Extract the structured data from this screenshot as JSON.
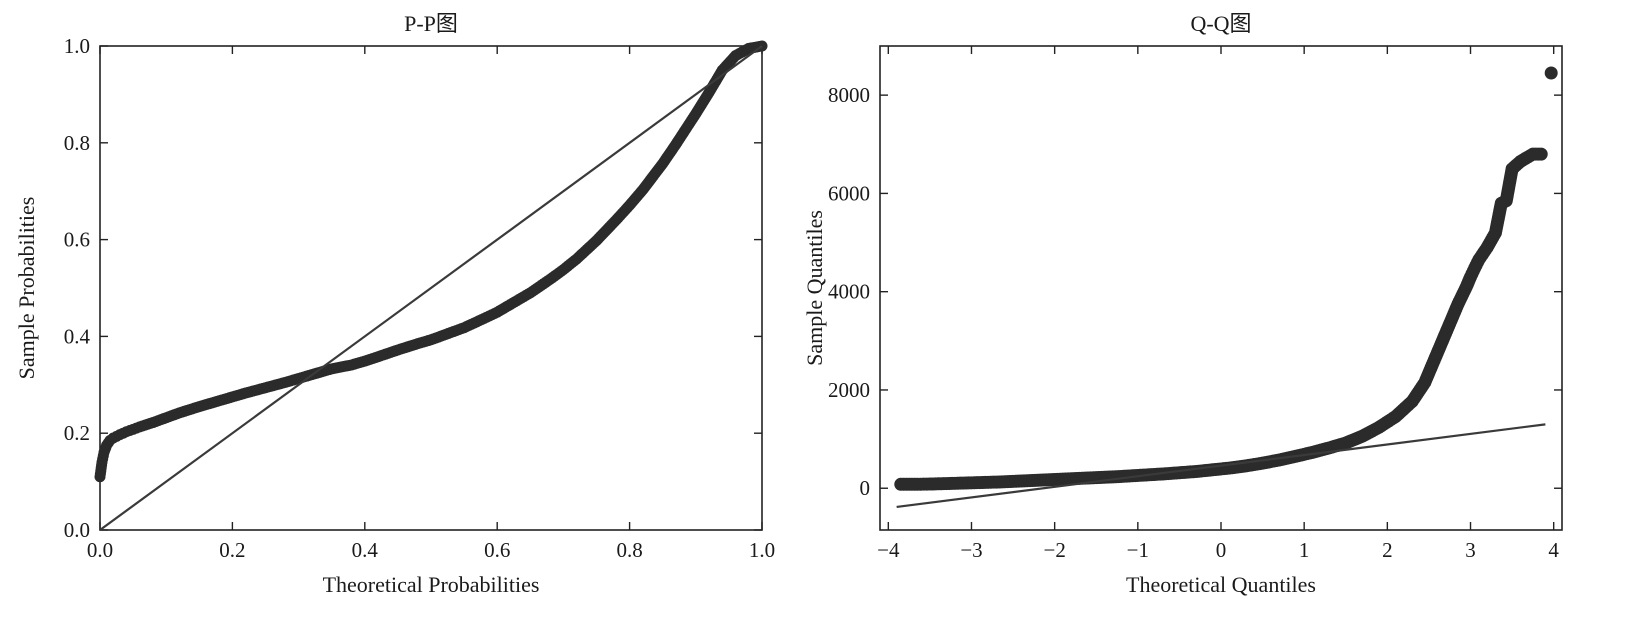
{
  "chart_data": [
    {
      "type": "scatter",
      "title": "P-P图",
      "xlabel": "Theoretical Probabilities",
      "ylabel": "Sample Probabilities",
      "xlim": [
        0.0,
        1.0
      ],
      "ylim": [
        0.0,
        1.0
      ],
      "xticks": [
        "0.0",
        "0.2",
        "0.4",
        "0.6",
        "0.8",
        "1.0"
      ],
      "yticks": [
        "0.0",
        "0.2",
        "0.4",
        "0.6",
        "0.8",
        "1.0"
      ],
      "grid": false,
      "reference_line": [
        [
          0.0,
          0.0
        ],
        [
          1.0,
          1.0
        ]
      ],
      "series": [
        {
          "marker_color": "#2b2b2b",
          "points": [
            [
              0.0,
              0.11
            ],
            [
              0.003,
              0.14
            ],
            [
              0.006,
              0.16
            ],
            [
              0.01,
              0.175
            ],
            [
              0.015,
              0.185
            ],
            [
              0.02,
              0.19
            ],
            [
              0.03,
              0.197
            ],
            [
              0.04,
              0.203
            ],
            [
              0.05,
              0.208
            ],
            [
              0.06,
              0.213
            ],
            [
              0.08,
              0.222
            ],
            [
              0.1,
              0.232
            ],
            [
              0.12,
              0.242
            ],
            [
              0.15,
              0.255
            ],
            [
              0.18,
              0.267
            ],
            [
              0.2,
              0.275
            ],
            [
              0.22,
              0.283
            ],
            [
              0.25,
              0.294
            ],
            [
              0.28,
              0.305
            ],
            [
              0.3,
              0.313
            ],
            [
              0.32,
              0.321
            ],
            [
              0.35,
              0.333
            ],
            [
              0.38,
              0.341
            ],
            [
              0.4,
              0.349
            ],
            [
              0.42,
              0.358
            ],
            [
              0.45,
              0.372
            ],
            [
              0.48,
              0.385
            ],
            [
              0.5,
              0.393
            ],
            [
              0.53,
              0.408
            ],
            [
              0.55,
              0.418
            ],
            [
              0.58,
              0.437
            ],
            [
              0.6,
              0.45
            ],
            [
              0.63,
              0.474
            ],
            [
              0.65,
              0.49
            ],
            [
              0.68,
              0.518
            ],
            [
              0.7,
              0.538
            ],
            [
              0.72,
              0.56
            ],
            [
              0.75,
              0.598
            ],
            [
              0.78,
              0.641
            ],
            [
              0.8,
              0.671
            ],
            [
              0.82,
              0.703
            ],
            [
              0.85,
              0.757
            ],
            [
              0.87,
              0.797
            ],
            [
              0.9,
              0.86
            ],
            [
              0.92,
              0.904
            ],
            [
              0.94,
              0.95
            ],
            [
              0.96,
              0.98
            ],
            [
              0.98,
              0.995
            ],
            [
              1.0,
              1.0
            ]
          ]
        }
      ]
    },
    {
      "type": "scatter",
      "title": "Q-Q图",
      "xlabel": "Theoretical Quantiles",
      "ylabel": "Sample Quantiles",
      "xlim": [
        -4.1,
        4.1
      ],
      "ylim": [
        -850,
        9000
      ],
      "xticks": [
        "−4",
        "−3",
        "−2",
        "−1",
        "0",
        "1",
        "2",
        "3",
        "4"
      ],
      "xtick_values": [
        -4,
        -3,
        -2,
        -1,
        0,
        1,
        2,
        3,
        4
      ],
      "yticks": [
        "0",
        "2000",
        "4000",
        "6000",
        "8000"
      ],
      "ytick_values": [
        0,
        2000,
        4000,
        6000,
        8000
      ],
      "grid": false,
      "reference_line": [
        [
          -3.9,
          -380
        ],
        [
          3.9,
          1300
        ]
      ],
      "series": [
        {
          "marker_color": "#2b2b2b",
          "points": [
            [
              -3.85,
              80
            ],
            [
              -3.65,
              80
            ],
            [
              -3.5,
              85
            ],
            [
              -3.3,
              95
            ],
            [
              -3.1,
              105
            ],
            [
              -2.9,
              115
            ],
            [
              -2.7,
              125
            ],
            [
              -2.5,
              140
            ],
            [
              -2.3,
              155
            ],
            [
              -2.1,
              170
            ],
            [
              -1.9,
              185
            ],
            [
              -1.7,
              200
            ],
            [
              -1.5,
              215
            ],
            [
              -1.3,
              230
            ],
            [
              -1.1,
              250
            ],
            [
              -0.9,
              270
            ],
            [
              -0.7,
              290
            ],
            [
              -0.5,
              315
            ],
            [
              -0.3,
              340
            ],
            [
              -0.1,
              375
            ],
            [
              0.1,
              410
            ],
            [
              0.3,
              455
            ],
            [
              0.5,
              510
            ],
            [
              0.7,
              575
            ],
            [
              0.9,
              650
            ],
            [
              1.1,
              730
            ],
            [
              1.3,
              820
            ],
            [
              1.5,
              920
            ],
            [
              1.7,
              1060
            ],
            [
              1.9,
              1240
            ],
            [
              2.1,
              1460
            ],
            [
              2.3,
              1770
            ],
            [
              2.45,
              2150
            ],
            [
              2.55,
              2550
            ],
            [
              2.65,
              2950
            ],
            [
              2.75,
              3350
            ],
            [
              2.85,
              3750
            ],
            [
              2.95,
              4100
            ],
            [
              3.0,
              4300
            ],
            [
              3.05,
              4480
            ],
            [
              3.1,
              4650
            ],
            [
              3.2,
              4900
            ],
            [
              3.3,
              5200
            ],
            [
              3.37,
              5800
            ],
            [
              3.43,
              5850
            ],
            [
              3.5,
              6500
            ],
            [
              3.6,
              6650
            ],
            [
              3.75,
              6800
            ],
            [
              3.85,
              6800
            ],
            [
              3.97,
              8450
            ]
          ]
        }
      ]
    }
  ]
}
